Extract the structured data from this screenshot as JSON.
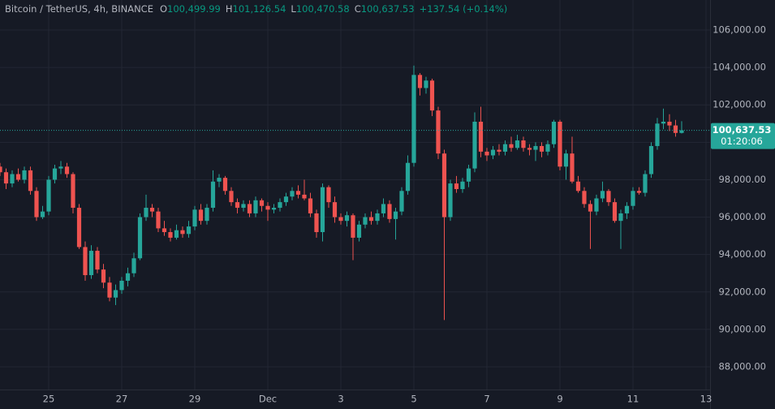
{
  "header": {
    "symbol": "Bitcoin / TetherUS, 4h, BINANCE",
    "ohlc": [
      {
        "label": "O",
        "value": "100,499.99"
      },
      {
        "label": "H",
        "value": "101,126.54"
      },
      {
        "label": "L",
        "value": "100,470.58"
      },
      {
        "label": "C",
        "value": "100,637.53"
      }
    ],
    "change": "+137.54 (+0.14%)"
  },
  "chart_data": {
    "type": "candlestick",
    "up_color": "#26a69a",
    "down_color": "#ef5350",
    "grid": true,
    "ylim": [
      86786,
      107605
    ],
    "yticks": [
      {
        "value": 88000,
        "label": "88,000.00"
      },
      {
        "value": 90000,
        "label": "90,000.00"
      },
      {
        "value": 92000,
        "label": "92,000.00"
      },
      {
        "value": 94000,
        "label": "94,000.00"
      },
      {
        "value": 96000,
        "label": "96,000.00"
      },
      {
        "value": 98000,
        "label": "98,000.00"
      },
      {
        "value": 100000,
        "label": "100,000.00"
      },
      {
        "value": 102000,
        "label": "102,000.00"
      },
      {
        "value": 104000,
        "label": "104,000.00"
      },
      {
        "value": 106000,
        "label": "106,000.00"
      }
    ],
    "xlim": [
      0,
      116.67
    ],
    "xticks": [
      {
        "value": 8,
        "label": "25"
      },
      {
        "value": 20,
        "label": "27"
      },
      {
        "value": 32,
        "label": "29"
      },
      {
        "value": 44,
        "label": "Dec"
      },
      {
        "value": 56,
        "label": "3"
      },
      {
        "value": 68,
        "label": "5"
      },
      {
        "value": 80,
        "label": "7"
      },
      {
        "value": 92,
        "label": "9"
      },
      {
        "value": 104,
        "label": "11"
      },
      {
        "value": 116,
        "label": "13"
      }
    ],
    "last_price": {
      "value": 100637.53,
      "label": "100,637.53"
    },
    "countdown": "01:20:06",
    "candles": [
      [
        98700,
        98900,
        98200,
        98400
      ],
      [
        98400,
        98600,
        97500,
        97800
      ],
      [
        97800,
        98500,
        97600,
        98300
      ],
      [
        98300,
        98600,
        97900,
        98000
      ],
      [
        98000,
        98700,
        97800,
        98500
      ],
      [
        98500,
        98700,
        97200,
        97400
      ],
      [
        97400,
        97600,
        95800,
        96000
      ],
      [
        96000,
        96600,
        95900,
        96300
      ],
      [
        96300,
        98200,
        96100,
        98000
      ],
      [
        98000,
        98800,
        97800,
        98600
      ],
      [
        98600,
        99000,
        98300,
        98700
      ],
      [
        98700,
        98900,
        98100,
        98300
      ],
      [
        98300,
        98400,
        96200,
        96500
      ],
      [
        96500,
        96700,
        94300,
        94400
      ],
      [
        94400,
        94700,
        92600,
        92900
      ],
      [
        92900,
        94500,
        92700,
        94200
      ],
      [
        94200,
        94400,
        93000,
        93200
      ],
      [
        93200,
        93500,
        92200,
        92500
      ],
      [
        92500,
        92800,
        91500,
        91700
      ],
      [
        91700,
        92400,
        91300,
        92100
      ],
      [
        92100,
        92800,
        91900,
        92600
      ],
      [
        92600,
        93300,
        92300,
        93000
      ],
      [
        93000,
        94100,
        92800,
        93800
      ],
      [
        93800,
        96200,
        93700,
        96000
      ],
      [
        96000,
        97200,
        95800,
        96500
      ],
      [
        96500,
        96700,
        96000,
        96300
      ],
      [
        96300,
        96500,
        95200,
        95400
      ],
      [
        95400,
        95800,
        95000,
        95200
      ],
      [
        95200,
        95400,
        94700,
        94900
      ],
      [
        94900,
        95600,
        94800,
        95300
      ],
      [
        95300,
        95500,
        94900,
        95100
      ],
      [
        95100,
        95800,
        94900,
        95500
      ],
      [
        95500,
        96600,
        95300,
        96400
      ],
      [
        96400,
        96700,
        95600,
        95800
      ],
      [
        95800,
        96700,
        95600,
        96500
      ],
      [
        96500,
        98500,
        96300,
        97900
      ],
      [
        97900,
        98300,
        97600,
        98100
      ],
      [
        98100,
        98200,
        97200,
        97400
      ],
      [
        97400,
        97600,
        96600,
        96800
      ],
      [
        96800,
        97000,
        96200,
        96500
      ],
      [
        96500,
        96900,
        96300,
        96700
      ],
      [
        96700,
        96900,
        96000,
        96200
      ],
      [
        96200,
        97100,
        96000,
        96900
      ],
      [
        96900,
        97000,
        96300,
        96600
      ],
      [
        96600,
        96800,
        95800,
        96400
      ],
      [
        96400,
        96700,
        96200,
        96500
      ],
      [
        96500,
        97000,
        96300,
        96800
      ],
      [
        96800,
        97300,
        96600,
        97100
      ],
      [
        97100,
        97600,
        96900,
        97400
      ],
      [
        97400,
        97700,
        97000,
        97200
      ],
      [
        97200,
        98000,
        96900,
        97000
      ],
      [
        97000,
        97300,
        96000,
        96200
      ],
      [
        96200,
        96400,
        94900,
        95200
      ],
      [
        95200,
        97800,
        94700,
        97600
      ],
      [
        97600,
        97700,
        96500,
        96800
      ],
      [
        96800,
        97100,
        95700,
        96000
      ],
      [
        96000,
        96200,
        95600,
        95800
      ],
      [
        95800,
        96300,
        95500,
        96100
      ],
      [
        96100,
        96200,
        93700,
        94900
      ],
      [
        94900,
        95800,
        94700,
        95600
      ],
      [
        95600,
        96200,
        95400,
        96000
      ],
      [
        96000,
        96300,
        95600,
        95800
      ],
      [
        95800,
        96400,
        95600,
        96200
      ],
      [
        96200,
        97000,
        96000,
        96700
      ],
      [
        96700,
        96900,
        95700,
        95900
      ],
      [
        95900,
        96500,
        94800,
        96300
      ],
      [
        96300,
        97600,
        96100,
        97400
      ],
      [
        97400,
        99300,
        97200,
        98900
      ],
      [
        98900,
        104100,
        98700,
        103600
      ],
      [
        103600,
        103700,
        102500,
        102900
      ],
      [
        102900,
        103500,
        102600,
        103300
      ],
      [
        103300,
        103400,
        101400,
        101700
      ],
      [
        101700,
        101900,
        99100,
        99400
      ],
      [
        99400,
        99600,
        90500,
        96000
      ],
      [
        96000,
        98000,
        95800,
        97800
      ],
      [
        97800,
        98200,
        97300,
        97500
      ],
      [
        97500,
        98100,
        97300,
        97900
      ],
      [
        97900,
        98800,
        97600,
        98600
      ],
      [
        98600,
        101600,
        98400,
        101100
      ],
      [
        101100,
        101900,
        99200,
        99500
      ],
      [
        99500,
        99700,
        99000,
        99300
      ],
      [
        99300,
        99800,
        99100,
        99600
      ],
      [
        99600,
        99900,
        99300,
        99500
      ],
      [
        99500,
        100100,
        99300,
        99900
      ],
      [
        99900,
        100300,
        99500,
        99700
      ],
      [
        99700,
        100400,
        99600,
        100100
      ],
      [
        100100,
        100300,
        99500,
        99700
      ],
      [
        99700,
        99900,
        99300,
        99600
      ],
      [
        99600,
        100000,
        99000,
        99800
      ],
      [
        99800,
        100000,
        99200,
        99500
      ],
      [
        99500,
        100100,
        99300,
        99900
      ],
      [
        99900,
        101200,
        99700,
        101100
      ],
      [
        101100,
        101200,
        98500,
        98700
      ],
      [
        98700,
        99600,
        98000,
        99400
      ],
      [
        99400,
        100300,
        97800,
        97900
      ],
      [
        97900,
        98200,
        97300,
        97400
      ],
      [
        97400,
        97600,
        96500,
        96700
      ],
      [
        96700,
        96900,
        94300,
        96300
      ],
      [
        96300,
        97200,
        96100,
        97000
      ],
      [
        97000,
        97900,
        96800,
        97400
      ],
      [
        97400,
        97500,
        96600,
        96800
      ],
      [
        96800,
        97000,
        95700,
        95800
      ],
      [
        95800,
        96400,
        94300,
        96200
      ],
      [
        96200,
        96800,
        95900,
        96600
      ],
      [
        96600,
        97600,
        96400,
        97400
      ],
      [
        97400,
        97600,
        97200,
        97300
      ],
      [
        97300,
        98500,
        97100,
        98300
      ],
      [
        98300,
        100000,
        98100,
        99800
      ],
      [
        99800,
        101300,
        99600,
        101000
      ],
      [
        101000,
        101800,
        100700,
        101100
      ],
      [
        101100,
        101500,
        100600,
        100900
      ],
      [
        100900,
        101200,
        100300,
        100499.99
      ],
      [
        100499.99,
        101126.54,
        100470.58,
        100637.53
      ]
    ]
  }
}
